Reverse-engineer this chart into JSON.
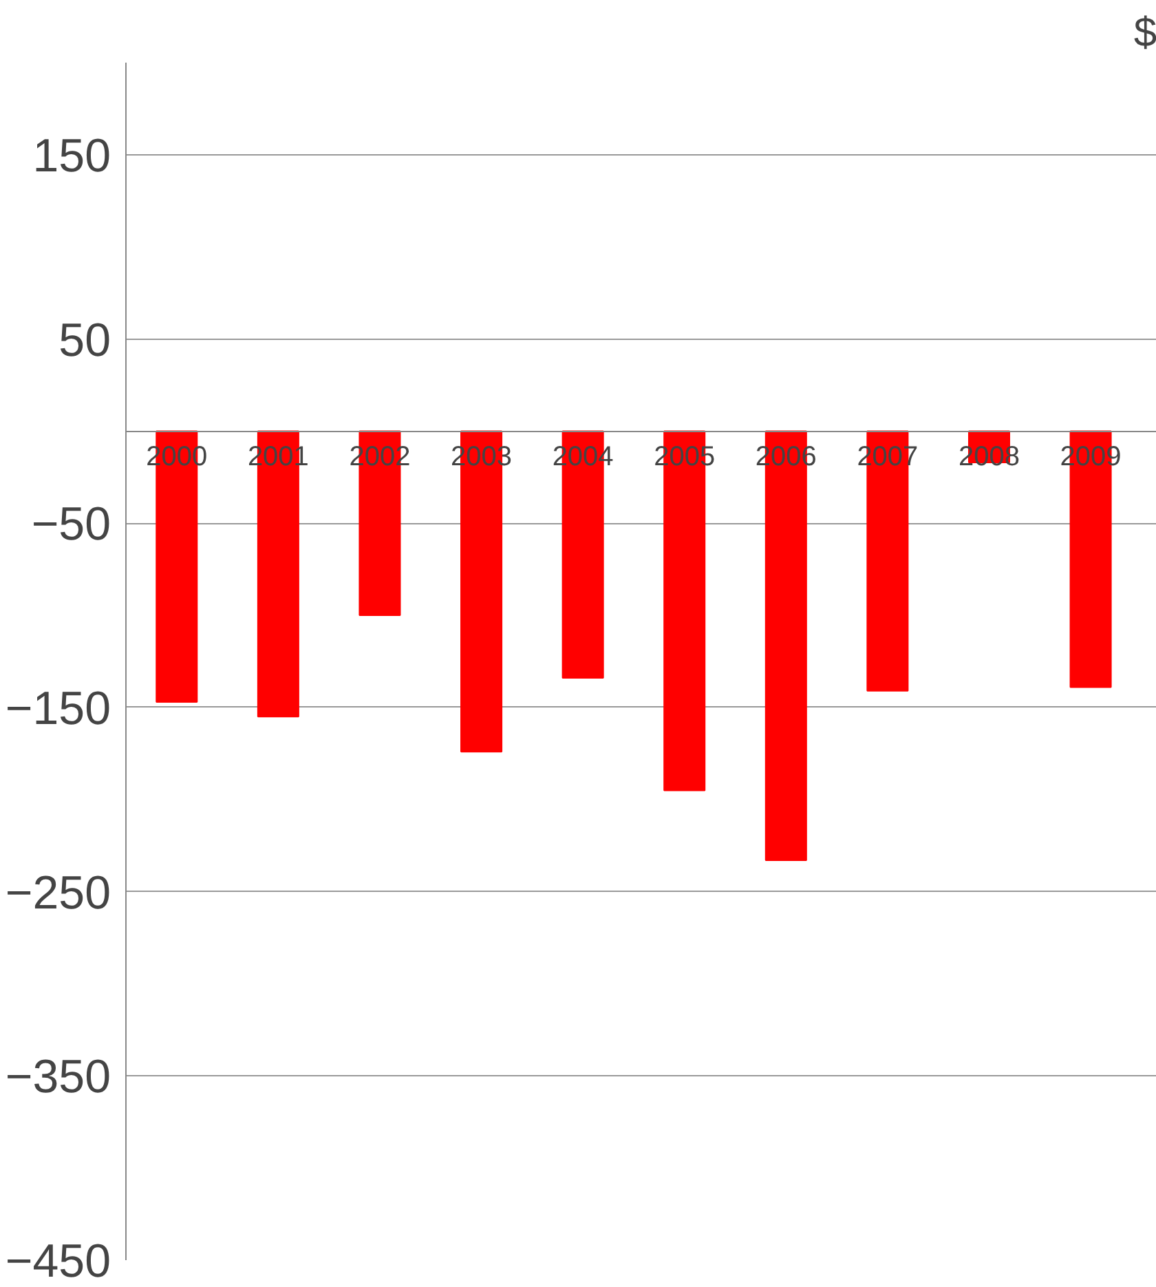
{
  "chart_data": {
    "type": "bar",
    "title": "$",
    "categories": [
      "2000",
      "2001",
      "2002",
      "2003",
      "2004",
      "2005",
      "2006",
      "2007",
      "2008",
      "2009"
    ],
    "values": [
      -147,
      -155,
      -100,
      -174,
      -134,
      -195,
      -233,
      -141,
      -17,
      -139
    ],
    "color": "#ff0000",
    "ylim": [
      -450,
      200
    ],
    "yticks": [
      -450,
      -350,
      -250,
      -150,
      -50,
      50,
      150
    ],
    "grid": "y"
  }
}
